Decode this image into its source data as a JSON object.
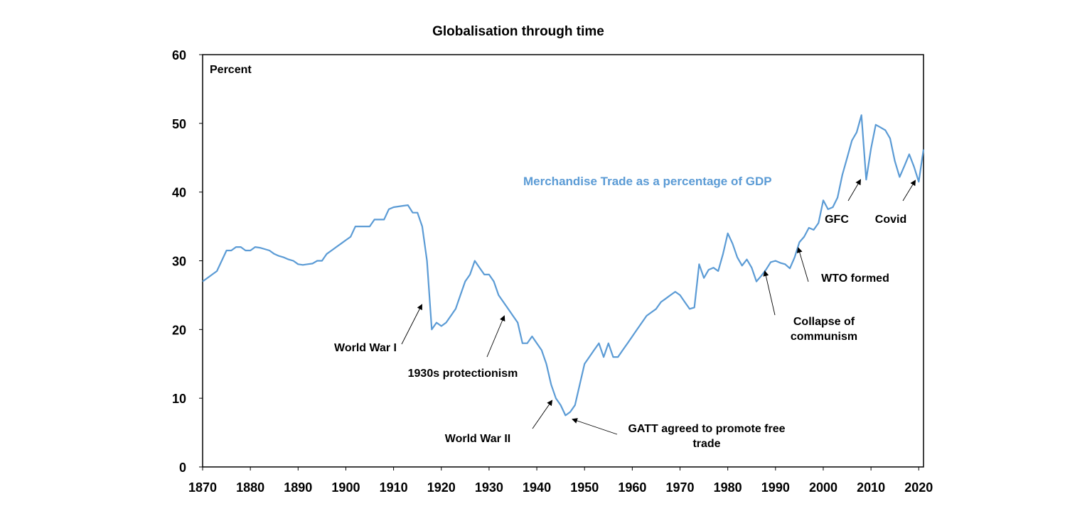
{
  "chart_data": {
    "type": "line",
    "title": "Globalisation through time",
    "xlabel": "",
    "ylabel": "Percent",
    "xlim": [
      1870,
      2021
    ],
    "ylim": [
      0,
      60
    ],
    "x_ticks": [
      1870,
      1880,
      1890,
      1900,
      1910,
      1920,
      1930,
      1940,
      1950,
      1960,
      1970,
      1980,
      1990,
      2000,
      2010,
      2020
    ],
    "y_ticks": [
      0,
      10,
      20,
      30,
      40,
      50,
      60
    ],
    "grid": false,
    "legend": "none",
    "series": [
      {
        "name": "Merchandise Trade as a percentage of GDP",
        "color": "#5B9BD5",
        "x": [
          1870,
          1873,
          1875,
          1876,
          1877,
          1878,
          1879,
          1880,
          1881,
          1882,
          1883,
          1884,
          1885,
          1886,
          1887,
          1888,
          1889,
          1890,
          1891,
          1892,
          1893,
          1894,
          1895,
          1896,
          1897,
          1898,
          1899,
          1900,
          1901,
          1902,
          1903,
          1904,
          1905,
          1906,
          1907,
          1908,
          1909,
          1910,
          1911,
          1912,
          1913,
          1914,
          1915,
          1916,
          1917,
          1918,
          1919,
          1920,
          1921,
          1922,
          1923,
          1924,
          1925,
          1926,
          1927,
          1928,
          1929,
          1930,
          1931,
          1932,
          1933,
          1934,
          1935,
          1936,
          1937,
          1938,
          1939,
          1940,
          1941,
          1942,
          1943,
          1944,
          1945,
          1946,
          1947,
          1948,
          1949,
          1950,
          1951,
          1952,
          1953,
          1954,
          1955,
          1956,
          1957,
          1958,
          1959,
          1960,
          1961,
          1962,
          1963,
          1964,
          1965,
          1966,
          1967,
          1968,
          1969,
          1970,
          1971,
          1972,
          1973,
          1974,
          1975,
          1976,
          1977,
          1978,
          1979,
          1980,
          1981,
          1982,
          1983,
          1984,
          1985,
          1986,
          1987,
          1988,
          1989,
          1990,
          1991,
          1992,
          1993,
          1994,
          1995,
          1996,
          1997,
          1998,
          1999,
          2000,
          2001,
          2002,
          2003,
          2004,
          2005,
          2006,
          2007,
          2008,
          2009,
          2010,
          2011,
          2012,
          2013,
          2014,
          2015,
          2016,
          2017,
          2018,
          2019,
          2020,
          2021
        ],
        "y": [
          27,
          28.5,
          31.5,
          31.5,
          32,
          32,
          31.5,
          31.5,
          32,
          31.9,
          31.7,
          31.5,
          31,
          30.7,
          30.5,
          30.2,
          30,
          29.5,
          29.4,
          29.5,
          29.6,
          30,
          30,
          31,
          31.5,
          32,
          32.5,
          33,
          33.5,
          35,
          35,
          35,
          35,
          36,
          36,
          36,
          37.5,
          37.8,
          37.9,
          38,
          38.1,
          37,
          37,
          35,
          30,
          20,
          21,
          20.5,
          21,
          22,
          23,
          25,
          27,
          28,
          30,
          29,
          28,
          28,
          27,
          25,
          24,
          23,
          22,
          21,
          18,
          18,
          19,
          18,
          17,
          15,
          12,
          10,
          9,
          7.5,
          8,
          9,
          12,
          15,
          16,
          17,
          18,
          16,
          18,
          16,
          16,
          17,
          18,
          19,
          20,
          21,
          22,
          22.5,
          23,
          24,
          24.5,
          25,
          25.5,
          25,
          24,
          23,
          23.2,
          29.5,
          27.5,
          28.7,
          29,
          28.5,
          31,
          34,
          32.5,
          30.5,
          29.3,
          30.2,
          29,
          27,
          27.8,
          28.7,
          29.8,
          30,
          29.7,
          29.5,
          28.9,
          30.5,
          32.7,
          33.5,
          34.8,
          34.5,
          35.5,
          38.8,
          37.5,
          37.8,
          39.2,
          42.5,
          45,
          47.5,
          48.7,
          51.2,
          41.8,
          46.3,
          49.8,
          49.4,
          49,
          47.8,
          44.5,
          42.2,
          43.8,
          45.5,
          43.7,
          41.5,
          46.2
        ]
      }
    ],
    "annotations": [
      {
        "text": "Merchandise Trade as a percentage of GDP",
        "color": "#5B9BD5"
      },
      {
        "text": "World War I"
      },
      {
        "text": "1930s protectionism"
      },
      {
        "text": "World War II"
      },
      {
        "text": "GATT agreed to promote free",
        "text2": "trade"
      },
      {
        "text": "Collapse of",
        "text2": "communism"
      },
      {
        "text": "WTO formed"
      },
      {
        "text": "GFC"
      },
      {
        "text": "Covid"
      }
    ]
  }
}
